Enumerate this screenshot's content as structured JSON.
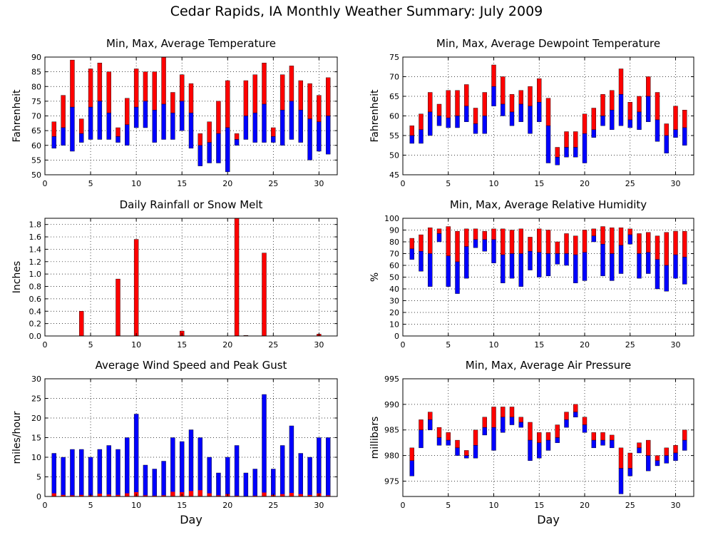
{
  "title": "Cedar Rapids, IA Monthly Weather Summary: July 2009",
  "colors": {
    "max_bar": "#ff0000",
    "min_bar": "#0000ff",
    "grid": "#000000"
  },
  "chart_data": [
    {
      "id": "temperature",
      "type": "bar",
      "style": "min-max-average floating bars",
      "title": "Min, Max, Average Temperature",
      "xlabel": "",
      "ylabel": "Fahrenheit",
      "xlim": [
        0,
        32
      ],
      "ylim": [
        50,
        90
      ],
      "xticks": [
        0,
        5,
        10,
        15,
        20,
        25,
        30
      ],
      "yticks": [
        50,
        55,
        60,
        65,
        70,
        75,
        80,
        85,
        90
      ],
      "grid": true,
      "days": [
        1,
        2,
        3,
        4,
        5,
        6,
        7,
        8,
        9,
        10,
        11,
        12,
        13,
        14,
        15,
        16,
        17,
        18,
        19,
        20,
        21,
        22,
        23,
        24,
        25,
        26,
        27,
        28,
        29,
        30,
        31
      ],
      "min": [
        59,
        60,
        58,
        61,
        62,
        62,
        62,
        61,
        60,
        66,
        66,
        61,
        62,
        62,
        65,
        59,
        53,
        54,
        54,
        51,
        60,
        62,
        61,
        61,
        61,
        60,
        62,
        61,
        55,
        58,
        57
      ],
      "avg": [
        63,
        66,
        73,
        64,
        73,
        75,
        71,
        63,
        67,
        73,
        75,
        72,
        74,
        71,
        75,
        71,
        60,
        61,
        64,
        66,
        62,
        70,
        71,
        74,
        63,
        72,
        75,
        72,
        69,
        68,
        70
      ],
      "max": [
        68,
        77,
        89,
        69,
        86,
        88,
        85,
        66,
        76,
        86,
        85,
        85,
        90,
        78,
        84,
        81,
        64,
        68,
        75,
        82,
        64,
        82,
        84,
        88,
        66,
        84,
        87,
        82,
        81,
        77,
        83
      ]
    },
    {
      "id": "dewpoint",
      "type": "bar",
      "style": "min-max-average floating bars",
      "title": "Min, Max, Average Dewpoint Temperature",
      "xlabel": "",
      "ylabel": "Fahrenheit",
      "xlim": [
        0,
        32
      ],
      "ylim": [
        45,
        75
      ],
      "xticks": [
        0,
        5,
        10,
        15,
        20,
        25,
        30
      ],
      "yticks": [
        45,
        50,
        55,
        60,
        65,
        70,
        75
      ],
      "grid": true,
      "days": [
        1,
        2,
        3,
        4,
        5,
        6,
        7,
        8,
        9,
        10,
        11,
        12,
        13,
        14,
        15,
        16,
        17,
        18,
        19,
        20,
        21,
        22,
        23,
        24,
        25,
        26,
        27,
        28,
        29,
        30,
        31
      ],
      "min": [
        53,
        53,
        55,
        57.5,
        57,
        57,
        58.5,
        55.5,
        55.5,
        62.5,
        60,
        57.5,
        58.5,
        55.5,
        58.5,
        48,
        47.5,
        49.5,
        49.5,
        48,
        54.5,
        57.5,
        56.5,
        57.5,
        57,
        56.5,
        58.5,
        53.5,
        50.5,
        54.5,
        52.5
      ],
      "avg": [
        55,
        56.5,
        61,
        60,
        59.5,
        60,
        62.5,
        58,
        60,
        67.5,
        63,
        61,
        63,
        62.5,
        63.5,
        57.5,
        49.5,
        52,
        52,
        55.5,
        56.5,
        60,
        61.5,
        65.5,
        59,
        61,
        65,
        59,
        55,
        56.5,
        57
      ],
      "max": [
        57.5,
        60.5,
        66,
        63,
        66.5,
        66.5,
        68,
        62,
        66,
        73,
        70,
        65.5,
        66.5,
        67.5,
        69.5,
        64.5,
        52,
        56,
        56,
        60.5,
        62,
        65.5,
        66.5,
        72,
        63.5,
        65,
        70,
        66,
        58,
        62.5,
        61.5
      ]
    },
    {
      "id": "rainfall",
      "type": "bar",
      "title": "Daily Rainfall or Snow Melt",
      "xlabel": "",
      "ylabel": "Inches",
      "xlim": [
        0,
        32
      ],
      "ylim": [
        0,
        1.9
      ],
      "xticks": [
        0,
        5,
        10,
        15,
        20,
        25,
        30
      ],
      "yticks": [
        0.0,
        0.2,
        0.4,
        0.6,
        0.8,
        1.0,
        1.2,
        1.4,
        1.6,
        1.8
      ],
      "ytick_labels": [
        "0.0",
        "0.2",
        "0.4",
        "0.6",
        "0.8",
        "1.0",
        "1.2",
        "1.4",
        "1.6",
        "1.8"
      ],
      "grid": true,
      "days": [
        4,
        8,
        10,
        15,
        21,
        22,
        24,
        30
      ],
      "values": [
        0.4,
        0.92,
        1.56,
        0.08,
        1.9,
        0.01,
        1.34,
        0.03
      ]
    },
    {
      "id": "humidity",
      "type": "bar",
      "style": "min-max-average floating bars",
      "title": "Min, Max, Average Relative Humidity",
      "xlabel": "",
      "ylabel": "%",
      "xlim": [
        0,
        32
      ],
      "ylim": [
        0,
        100
      ],
      "xticks": [
        0,
        5,
        10,
        15,
        20,
        25,
        30
      ],
      "yticks": [
        0,
        10,
        20,
        30,
        40,
        50,
        60,
        70,
        80,
        90,
        100
      ],
      "grid": true,
      "days": [
        1,
        2,
        3,
        4,
        5,
        6,
        7,
        8,
        9,
        10,
        11,
        12,
        13,
        14,
        15,
        16,
        17,
        18,
        19,
        20,
        21,
        22,
        23,
        24,
        25,
        26,
        27,
        28,
        29,
        30,
        31
      ],
      "min": [
        65,
        55,
        42,
        80,
        42,
        36,
        49,
        75,
        72,
        62,
        45,
        49,
        42,
        56,
        50,
        51,
        61,
        60,
        45,
        47,
        80,
        51,
        47,
        53,
        78,
        49,
        53,
        40,
        38,
        49,
        44
      ],
      "avg": [
        74,
        72,
        70,
        87,
        68,
        63,
        76,
        82,
        82,
        82,
        69,
        70,
        70,
        72,
        71,
        70,
        70,
        70,
        69,
        71,
        85,
        78,
        70,
        77,
        86,
        70,
        71,
        65,
        60,
        69,
        67
      ],
      "max": [
        83,
        86,
        92,
        91,
        93,
        89,
        91,
        91,
        89,
        91,
        91,
        90,
        91,
        84,
        91,
        90,
        80,
        87,
        85,
        90,
        91,
        93,
        92,
        92,
        91,
        87,
        88,
        85,
        88,
        89,
        89
      ]
    },
    {
      "id": "wind",
      "type": "bar",
      "title": "Average Wind Speed and Peak Gust",
      "xlabel": "Day",
      "ylabel": "miles/hour",
      "xlim": [
        0,
        32
      ],
      "ylim": [
        0,
        30
      ],
      "xticks": [
        0,
        5,
        10,
        15,
        20,
        25,
        30
      ],
      "yticks": [
        0,
        5,
        10,
        15,
        20,
        25,
        30
      ],
      "grid": true,
      "days": [
        1,
        2,
        3,
        4,
        5,
        6,
        7,
        8,
        9,
        10,
        11,
        12,
        13,
        14,
        15,
        16,
        17,
        18,
        19,
        20,
        21,
        22,
        23,
        24,
        25,
        26,
        27,
        28,
        29,
        30,
        31
      ],
      "peak_gust": [
        11,
        10,
        12,
        12,
        10,
        12,
        13,
        12,
        15,
        21,
        8,
        7,
        9,
        15,
        14,
        17,
        15,
        10,
        6,
        10,
        13,
        6,
        7,
        26,
        7,
        13,
        18,
        11,
        10,
        15,
        15
      ],
      "avg_speed": [
        0.8,
        0.4,
        0.3,
        0.4,
        0.3,
        0.7,
        0.5,
        0.4,
        0.8,
        1.1,
        0.3,
        0.2,
        0.3,
        1.2,
        1.1,
        1.4,
        1.6,
        0.8,
        0.3,
        0.6,
        0.2,
        0.1,
        0.2,
        1.0,
        0.4,
        0.6,
        0.9,
        0.6,
        0.4,
        0.8,
        0.3
      ]
    },
    {
      "id": "pressure",
      "type": "bar",
      "style": "min-max-average floating bars",
      "title": "Min, Max, Average Air Pressure",
      "xlabel": "Day",
      "ylabel": "millibars",
      "xlim": [
        0,
        32
      ],
      "ylim": [
        972,
        995
      ],
      "xticks": [
        0,
        5,
        10,
        15,
        20,
        25,
        30
      ],
      "yticks": [
        975,
        980,
        985,
        990,
        995
      ],
      "grid": true,
      "days": [
        1,
        2,
        3,
        4,
        5,
        6,
        7,
        8,
        9,
        10,
        11,
        12,
        13,
        14,
        15,
        16,
        17,
        18,
        19,
        20,
        21,
        22,
        23,
        24,
        25,
        26,
        27,
        28,
        29,
        30,
        31
      ],
      "min": [
        976,
        981.5,
        985,
        982,
        982,
        980,
        979.5,
        979.5,
        984,
        981,
        984.5,
        986,
        985.5,
        979,
        979.5,
        981,
        982.5,
        985.5,
        987.5,
        984.5,
        981.5,
        982,
        981.5,
        972.5,
        976,
        980.5,
        977,
        978,
        978.5,
        979,
        981
      ],
      "avg": [
        979,
        985,
        987,
        983.5,
        983,
        981.5,
        980,
        982,
        985.5,
        985.5,
        987.5,
        987.5,
        986.5,
        983,
        982.5,
        983,
        983.5,
        987,
        988.5,
        986,
        983,
        983,
        983,
        977.5,
        977.5,
        981.5,
        980,
        979,
        980,
        980.5,
        983
      ],
      "max": [
        981.5,
        987,
        988.5,
        985.5,
        984.5,
        983,
        981,
        985,
        987.5,
        989.5,
        989.5,
        989.5,
        987.5,
        986.5,
        984.5,
        984.5,
        986,
        988.5,
        990,
        987.5,
        984.5,
        984.5,
        984,
        981.5,
        980.5,
        982.5,
        983,
        980,
        981.5,
        982,
        985
      ]
    }
  ]
}
